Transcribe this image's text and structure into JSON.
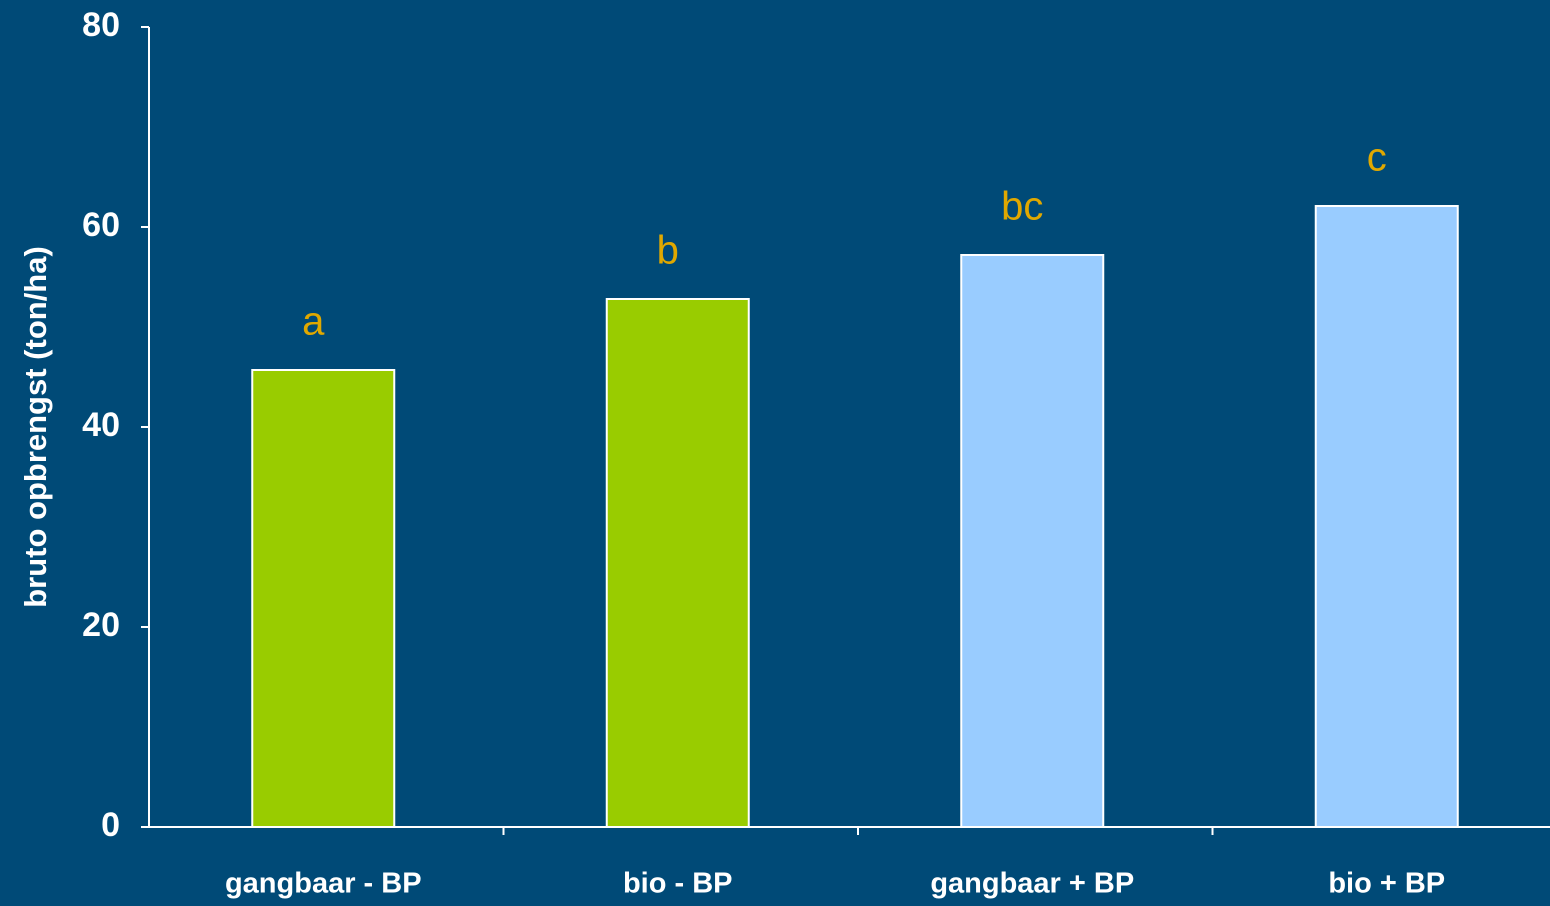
{
  "chart_data": {
    "type": "bar",
    "y_label": "bruto opbrengst (ton/ha)",
    "categories": [
      "gangbaar - BP",
      "bio - BP",
      "gangbaar + BP",
      "bio + BP"
    ],
    "values": [
      45.7,
      52.8,
      57.2,
      62.1
    ],
    "colors": [
      "#99cc00",
      "#99cc00",
      "#99ccff",
      "#99ccff"
    ],
    "annotations": [
      "a",
      "b",
      "bc",
      "c"
    ],
    "ylim": [
      0,
      80
    ],
    "yticks": [
      0,
      20,
      40,
      60,
      80
    ],
    "grid": false
  }
}
